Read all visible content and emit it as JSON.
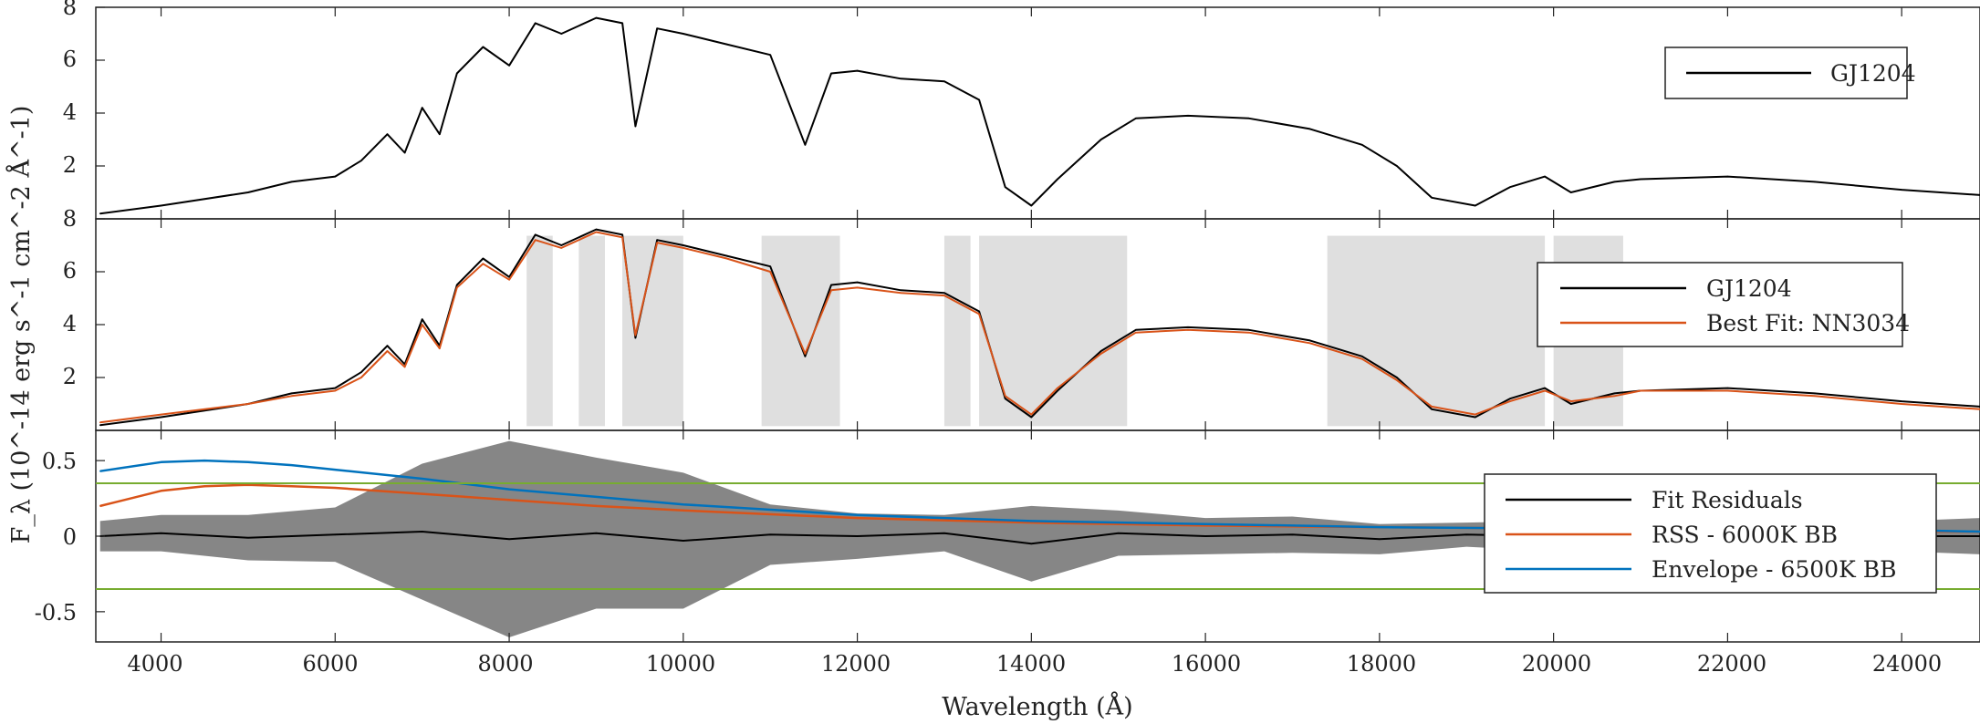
{
  "chart_data": [
    {
      "type": "line",
      "panel": "top",
      "ylabel": "F_λ (10^-14 erg s^-1 cm^-2 Å^-1)",
      "xlim": [
        3250,
        24900
      ],
      "ylim": [
        0,
        8
      ],
      "yticks": [
        "2",
        "4",
        "6",
        "8"
      ],
      "grid": false,
      "legend": "top-right",
      "series": [
        {
          "name": "GJ1204",
          "color": "#000000",
          "x": [
            3300,
            4000,
            5000,
            5500,
            6000,
            6300,
            6600,
            6800,
            7000,
            7200,
            7400,
            7700,
            8000,
            8300,
            8600,
            9000,
            9300,
            9450,
            9700,
            10000,
            10500,
            11000,
            11400,
            11700,
            12000,
            12500,
            13000,
            13400,
            13700,
            14000,
            14300,
            14800,
            15200,
            15800,
            16500,
            17200,
            17800,
            18200,
            18600,
            19100,
            19500,
            19900,
            20200,
            20700,
            21000,
            22000,
            23000,
            24000,
            24900
          ],
          "y": [
            0.2,
            0.5,
            1.0,
            1.4,
            1.6,
            2.2,
            3.2,
            2.5,
            4.2,
            3.2,
            5.5,
            6.5,
            5.8,
            7.4,
            7.0,
            7.6,
            7.4,
            3.5,
            7.2,
            7.0,
            6.6,
            6.2,
            2.8,
            5.5,
            5.6,
            5.3,
            5.2,
            4.5,
            1.2,
            0.5,
            1.5,
            3.0,
            3.8,
            3.9,
            3.8,
            3.4,
            2.8,
            2.0,
            0.8,
            0.5,
            1.2,
            1.6,
            1.0,
            1.4,
            1.5,
            1.6,
            1.4,
            1.1,
            0.9
          ]
        }
      ]
    },
    {
      "type": "line",
      "panel": "middle",
      "xlim": [
        3250,
        24900
      ],
      "ylim": [
        0,
        8
      ],
      "yticks": [
        "2",
        "4",
        "6",
        "8"
      ],
      "grid": false,
      "legend": "top-right",
      "masked_color": "#808080",
      "masked_ranges": [
        [
          8200,
          8500
        ],
        [
          8800,
          9100
        ],
        [
          9300,
          9500
        ],
        [
          9500,
          10000
        ],
        [
          10900,
          11800
        ],
        [
          13000,
          13300
        ],
        [
          13400,
          15100
        ],
        [
          17400,
          18300
        ],
        [
          18300,
          19900
        ],
        [
          20000,
          20800
        ]
      ],
      "series": [
        {
          "name": "GJ1204",
          "color": "#000000",
          "x": [
            3300,
            4000,
            5000,
            5500,
            6000,
            6300,
            6600,
            6800,
            7000,
            7200,
            7400,
            7700,
            8000,
            8300,
            8600,
            9000,
            9300,
            9450,
            9700,
            10000,
            10500,
            11000,
            11400,
            11700,
            12000,
            12500,
            13000,
            13400,
            13700,
            14000,
            14300,
            14800,
            15200,
            15800,
            16500,
            17200,
            17800,
            18200,
            18600,
            19100,
            19500,
            19900,
            20200,
            20700,
            21000,
            22000,
            23000,
            24000,
            24900
          ],
          "y": [
            0.2,
            0.5,
            1.0,
            1.4,
            1.6,
            2.2,
            3.2,
            2.5,
            4.2,
            3.2,
            5.5,
            6.5,
            5.8,
            7.4,
            7.0,
            7.6,
            7.4,
            3.5,
            7.2,
            7.0,
            6.6,
            6.2,
            2.8,
            5.5,
            5.6,
            5.3,
            5.2,
            4.5,
            1.2,
            0.5,
            1.5,
            3.0,
            3.8,
            3.9,
            3.8,
            3.4,
            2.8,
            2.0,
            0.8,
            0.5,
            1.2,
            1.6,
            1.0,
            1.4,
            1.5,
            1.6,
            1.4,
            1.1,
            0.9
          ]
        },
        {
          "name": "Best Fit: NN3034",
          "color": "#d95319",
          "x": [
            3300,
            4000,
            5000,
            5500,
            6000,
            6300,
            6600,
            6800,
            7000,
            7200,
            7400,
            7700,
            8000,
            8300,
            8600,
            9000,
            9300,
            9450,
            9700,
            10000,
            10500,
            11000,
            11400,
            11700,
            12000,
            12500,
            13000,
            13400,
            13700,
            14000,
            14300,
            14800,
            15200,
            15800,
            16500,
            17200,
            17800,
            18200,
            18600,
            19100,
            19500,
            19900,
            20200,
            20700,
            21000,
            22000,
            23000,
            24000,
            24900
          ],
          "y": [
            0.3,
            0.6,
            1.0,
            1.3,
            1.5,
            2.0,
            3.0,
            2.4,
            4.0,
            3.1,
            5.4,
            6.3,
            5.7,
            7.2,
            6.9,
            7.5,
            7.3,
            3.6,
            7.1,
            6.9,
            6.5,
            6.0,
            2.9,
            5.3,
            5.4,
            5.2,
            5.1,
            4.4,
            1.3,
            0.6,
            1.6,
            2.9,
            3.7,
            3.8,
            3.7,
            3.3,
            2.7,
            1.9,
            0.9,
            0.6,
            1.1,
            1.5,
            1.1,
            1.3,
            1.5,
            1.5,
            1.3,
            1.0,
            0.8
          ]
        }
      ]
    },
    {
      "type": "line",
      "panel": "bottom",
      "xlabel": "Wavelength (Å)",
      "xlim": [
        3250,
        24900
      ],
      "ylim": [
        -0.7,
        0.7
      ],
      "xticks": [
        "4000",
        "6000",
        "8000",
        "10000",
        "12000",
        "14000",
        "16000",
        "18000",
        "20000",
        "22000",
        "24000"
      ],
      "yticks": [
        "-0.5",
        "0",
        "0.5"
      ],
      "grid": false,
      "legend": "right",
      "threshold_lines": [
        0.35,
        -0.35
      ],
      "threshold_color": "#77ac30",
      "series": [
        {
          "name": "Fit Residuals",
          "color": "#000000",
          "x": [
            3300,
            4000,
            5000,
            6000,
            7000,
            8000,
            9000,
            10000,
            11000,
            12000,
            13000,
            14000,
            15000,
            16000,
            17000,
            18000,
            19000,
            20000,
            21000,
            22000,
            23000,
            24000,
            24900
          ],
          "y": [
            0.0,
            0.02,
            -0.01,
            0.01,
            0.03,
            -0.02,
            0.02,
            -0.03,
            0.01,
            0.0,
            0.02,
            -0.05,
            0.02,
            0.0,
            0.01,
            -0.02,
            0.01,
            0.0,
            0.0,
            0.01,
            0.0,
            0.0,
            0.0
          ],
          "band_amplitude": [
            0.1,
            0.12,
            0.15,
            0.18,
            0.45,
            0.65,
            0.5,
            0.45,
            0.2,
            0.15,
            0.12,
            0.25,
            0.15,
            0.12,
            0.12,
            0.1,
            0.08,
            0.1,
            0.08,
            0.1,
            0.08,
            0.1,
            0.12
          ]
        },
        {
          "name": "RSS - 6000K BB",
          "color": "#d95319",
          "x": [
            3300,
            4000,
            4500,
            5000,
            5500,
            6000,
            7000,
            8000,
            9000,
            10000,
            12000,
            14000,
            16000,
            18000,
            20000,
            22000,
            24000,
            24900
          ],
          "y": [
            0.2,
            0.3,
            0.33,
            0.34,
            0.33,
            0.32,
            0.28,
            0.24,
            0.2,
            0.17,
            0.12,
            0.09,
            0.07,
            0.06,
            0.05,
            0.04,
            0.03,
            0.03
          ]
        },
        {
          "name": "Envelope - 6500K BB",
          "color": "#0072bd",
          "x": [
            3300,
            4000,
            4500,
            5000,
            5500,
            6000,
            7000,
            8000,
            9000,
            10000,
            12000,
            14000,
            16000,
            18000,
            20000,
            22000,
            24000,
            24900
          ],
          "y": [
            0.43,
            0.49,
            0.5,
            0.49,
            0.47,
            0.44,
            0.38,
            0.31,
            0.26,
            0.21,
            0.14,
            0.1,
            0.08,
            0.06,
            0.05,
            0.04,
            0.04,
            0.03
          ]
        }
      ]
    }
  ]
}
